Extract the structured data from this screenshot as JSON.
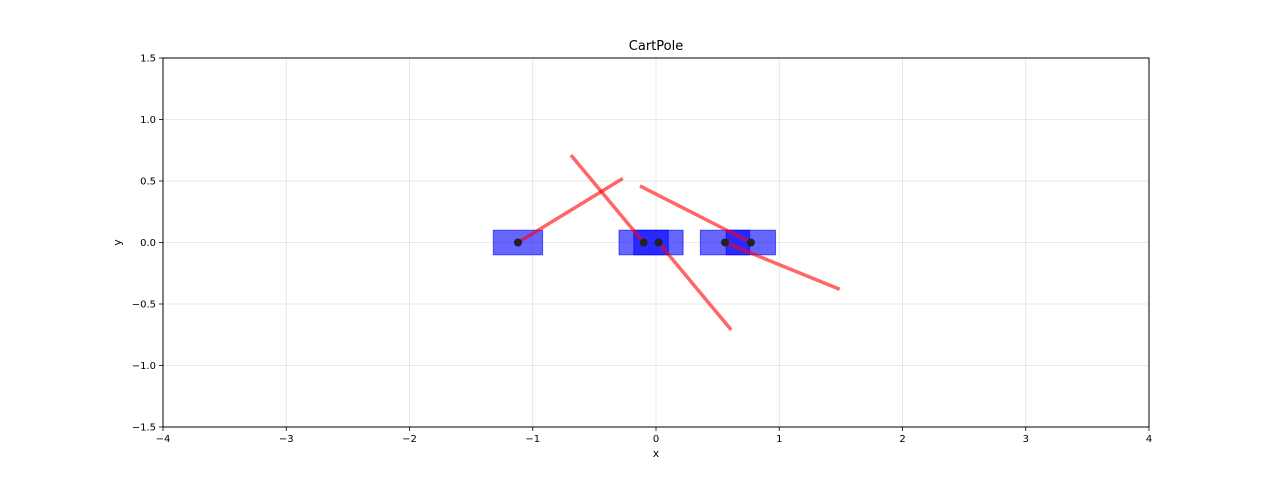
{
  "chart_data": {
    "type": "scatter",
    "title": "CartPole",
    "xlabel": "x",
    "ylabel": "y",
    "xlim": [
      -4,
      4
    ],
    "ylim": [
      -1.5,
      1.5
    ],
    "xticks": [
      -4,
      -3,
      -2,
      -1,
      0,
      1,
      2,
      3,
      4
    ],
    "yticks": [
      -1.5,
      -1.0,
      -0.5,
      0.0,
      0.5,
      1.0,
      1.5
    ],
    "xtick_labels": [
      "−4",
      "−3",
      "−2",
      "−1",
      "0",
      "1",
      "2",
      "3",
      "4"
    ],
    "ytick_labels": [
      "−1.5",
      "−1.0",
      "−0.5",
      "0.0",
      "0.5",
      "1.0",
      "1.5"
    ],
    "grid": true,
    "cart_color": "#0000ff",
    "pole_color": "#ff0000",
    "pivot_color": "#222222",
    "carts": [
      {
        "x": -1.12,
        "y": 0.0,
        "width": 0.4,
        "height": 0.2
      },
      {
        "x": -0.1,
        "y": 0.0,
        "width": 0.4,
        "height": 0.2
      },
      {
        "x": 0.02,
        "y": 0.0,
        "width": 0.4,
        "height": 0.2
      },
      {
        "x": 0.56,
        "y": 0.0,
        "width": 0.4,
        "height": 0.2
      },
      {
        "x": 0.77,
        "y": 0.0,
        "width": 0.4,
        "height": 0.2
      }
    ],
    "poles": [
      {
        "x1": -1.12,
        "y1": 0.0,
        "x2": -0.27,
        "y2": 0.52
      },
      {
        "x1": -0.1,
        "y1": 0.0,
        "x2": -0.69,
        "y2": 0.71
      },
      {
        "x1": 0.02,
        "y1": 0.0,
        "x2": 0.61,
        "y2": -0.71
      },
      {
        "x1": 0.56,
        "y1": 0.0,
        "x2": 1.49,
        "y2": -0.38
      },
      {
        "x1": 0.77,
        "y1": 0.0,
        "x2": -0.13,
        "y2": 0.46
      }
    ]
  }
}
